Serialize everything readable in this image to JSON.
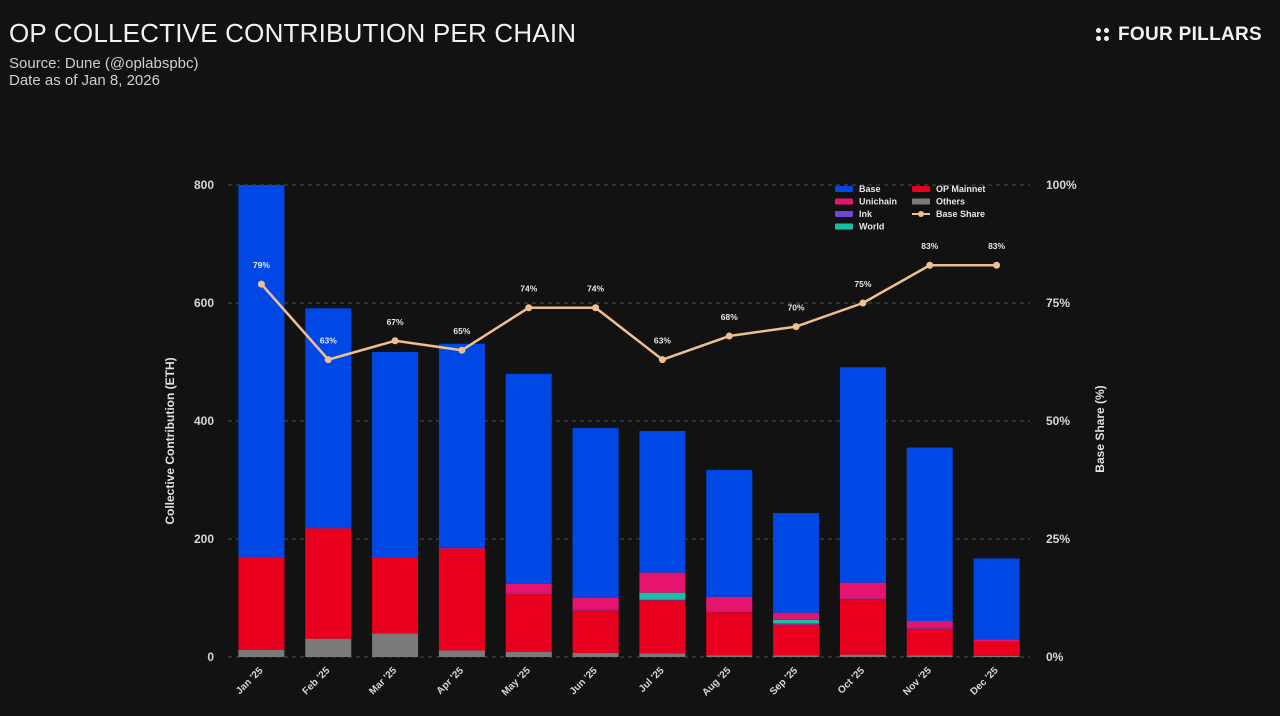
{
  "header": {
    "title": "OP COLLECTIVE CONTRIBUTION PER CHAIN",
    "source": "Source: Dune (@oplabspbc)",
    "date": "Date as of Jan 8, 2026",
    "brand": "FOUR PILLARS"
  },
  "colors": {
    "Base": "#0048e6",
    "OP Mainnet": "#e8001e",
    "Unichain": "#e6146e",
    "Others": "#7a7a7a",
    "Ink": "#6f45d8",
    "World": "#18c1a6",
    "Base Share": "#f0bf8f"
  },
  "chart_data": {
    "type": "bar",
    "stacked": true,
    "title": "OP COLLECTIVE CONTRIBUTION PER CHAIN",
    "ylabel": "Collective Contribution (ETH)",
    "y2label": "Base Share (%)",
    "ylim": [
      0,
      800
    ],
    "y2lim": [
      0,
      100
    ],
    "yticks": [
      0,
      200,
      400,
      600,
      800
    ],
    "y2ticks": [
      "0%",
      "25%",
      "50%",
      "75%",
      "100%"
    ],
    "grid": true,
    "legend_position": "top-right",
    "categories": [
      "Jan '25",
      "Feb '25",
      "Mar '25",
      "Apr '25",
      "May '25",
      "Jun '25",
      "Jul '25",
      "Aug '25",
      "Sep '25",
      "Oct '25",
      "Nov '25",
      "Dec '25"
    ],
    "series": [
      {
        "name": "Others",
        "values": [
          12,
          31,
          40,
          11,
          9,
          7,
          6,
          3,
          3,
          4,
          3,
          2
        ]
      },
      {
        "name": "OP Mainnet",
        "values": [
          157,
          187,
          128,
          173,
          98,
          72,
          90,
          73,
          52,
          94,
          45,
          24
        ]
      },
      {
        "name": "Ink",
        "values": [
          1,
          1,
          1,
          1,
          2,
          1,
          1,
          1,
          2,
          1,
          1,
          1
        ]
      },
      {
        "name": "World",
        "values": [
          0,
          0,
          0,
          0,
          0,
          0,
          12,
          0,
          6,
          0,
          0,
          0
        ]
      },
      {
        "name": "Unichain",
        "values": [
          0,
          0,
          0,
          0,
          15,
          20,
          34,
          25,
          12,
          27,
          12,
          3
        ]
      },
      {
        "name": "Base",
        "values": [
          630,
          372,
          348,
          346,
          356,
          288,
          240,
          215,
          169,
          365,
          294,
          137
        ]
      }
    ],
    "line": {
      "name": "Base Share",
      "axis": "right",
      "values": [
        79,
        63,
        67,
        65,
        74,
        74,
        63,
        68,
        70,
        75,
        83,
        83
      ],
      "labels": [
        "79%",
        "63%",
        "67%",
        "65%",
        "74%",
        "74%",
        "63%",
        "68%",
        "70%",
        "75%",
        "83%",
        "83%"
      ]
    },
    "legend": [
      "Base",
      "OP Mainnet",
      "Unichain",
      "Others",
      "Ink",
      "Base Share",
      "World"
    ]
  }
}
